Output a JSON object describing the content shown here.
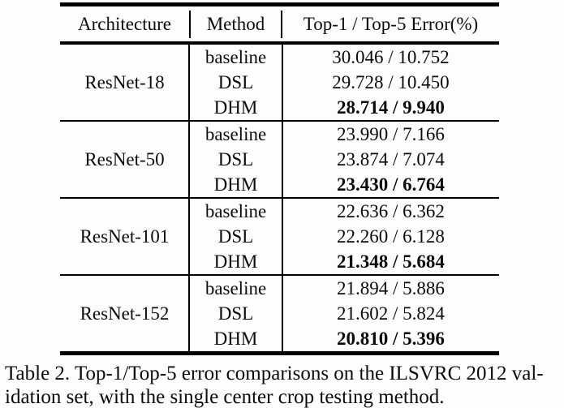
{
  "table": {
    "headers": {
      "architecture": "Architecture",
      "method": "Method",
      "error": "Top-1 / Top-5 Error(%)"
    },
    "groups": [
      {
        "architecture": "ResNet-18",
        "rows": [
          {
            "method": "baseline",
            "error": "30.046 / 10.752",
            "bold": false
          },
          {
            "method": "DSL",
            "error": "29.728 / 10.450",
            "bold": false
          },
          {
            "method": "DHM",
            "error": "28.714 / 9.940",
            "bold": true
          }
        ]
      },
      {
        "architecture": "ResNet-50",
        "rows": [
          {
            "method": "baseline",
            "error": "23.990 / 7.166",
            "bold": false
          },
          {
            "method": "DSL",
            "error": "23.874 / 7.074",
            "bold": false
          },
          {
            "method": "DHM",
            "error": "23.430 / 6.764",
            "bold": true
          }
        ]
      },
      {
        "architecture": "ResNet-101",
        "rows": [
          {
            "method": "baseline",
            "error": "22.636 / 6.362",
            "bold": false
          },
          {
            "method": "DSL",
            "error": "22.260 / 6.128",
            "bold": false
          },
          {
            "method": "DHM",
            "error": "21.348 / 5.684",
            "bold": true
          }
        ]
      },
      {
        "architecture": "ResNet-152",
        "rows": [
          {
            "method": "baseline",
            "error": "21.894 / 5.886",
            "bold": false
          },
          {
            "method": "DSL",
            "error": "21.602 / 5.824",
            "bold": false
          },
          {
            "method": "DHM",
            "error": "20.810 / 5.396",
            "bold": true
          }
        ]
      }
    ]
  },
  "caption": {
    "line1": "Table 2. Top-1/Top-5 error comparisons on the ILSVRC 2012 val-",
    "line2": "idation set, with the single center crop testing method."
  }
}
